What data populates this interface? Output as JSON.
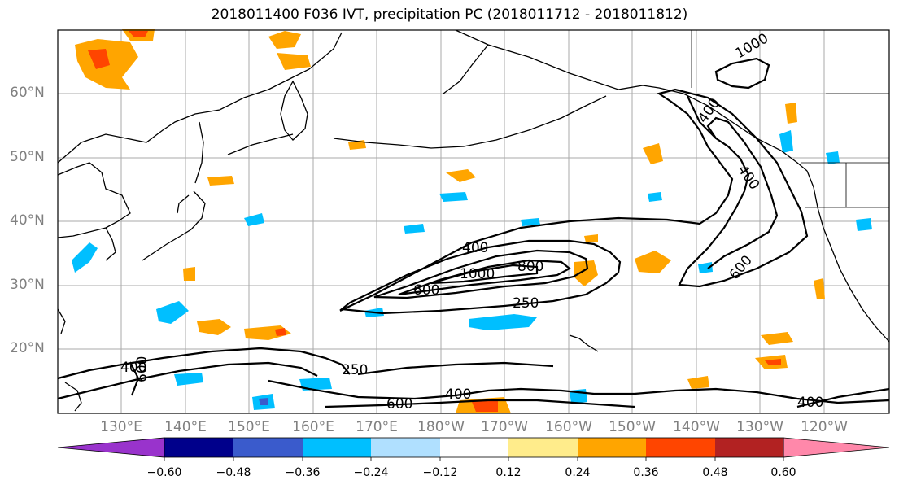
{
  "title": "2018011400 F036 IVT, precipitation PC (2018011712 - 2018011812)",
  "lat_labels": [
    "60°N",
    "50°N",
    "40°N",
    "30°N",
    "20°N"
  ],
  "lon_labels": [
    "130°E",
    "140°E",
    "150°E",
    "160°E",
    "170°E",
    "180°W",
    "170°W",
    "160°W",
    "150°W",
    "140°W",
    "130°W",
    "120°W"
  ],
  "contour_labels": [
    "250",
    "400",
    "600",
    "800",
    "1000",
    "400",
    "600",
    "400",
    "250",
    "400",
    "600",
    "400",
    "600",
    "400",
    "1000"
  ],
  "colorbar": {
    "ticks": [
      "−0.60",
      "−0.48",
      "−0.36",
      "−0.24",
      "−0.12",
      "0.12",
      "0.24",
      "0.36",
      "0.48",
      "0.60"
    ],
    "colors": [
      "#9933cc",
      "#00008b",
      "#3a5bcc",
      "#00bfff",
      "#b0e0ff",
      "#ffffff",
      "#ffec8b",
      "#ffa500",
      "#ff4500",
      "#b22222",
      "#ff88aa"
    ]
  },
  "colors": {
    "land_line": "#000000",
    "grid": "#999999",
    "axis_label": "#808080"
  }
}
